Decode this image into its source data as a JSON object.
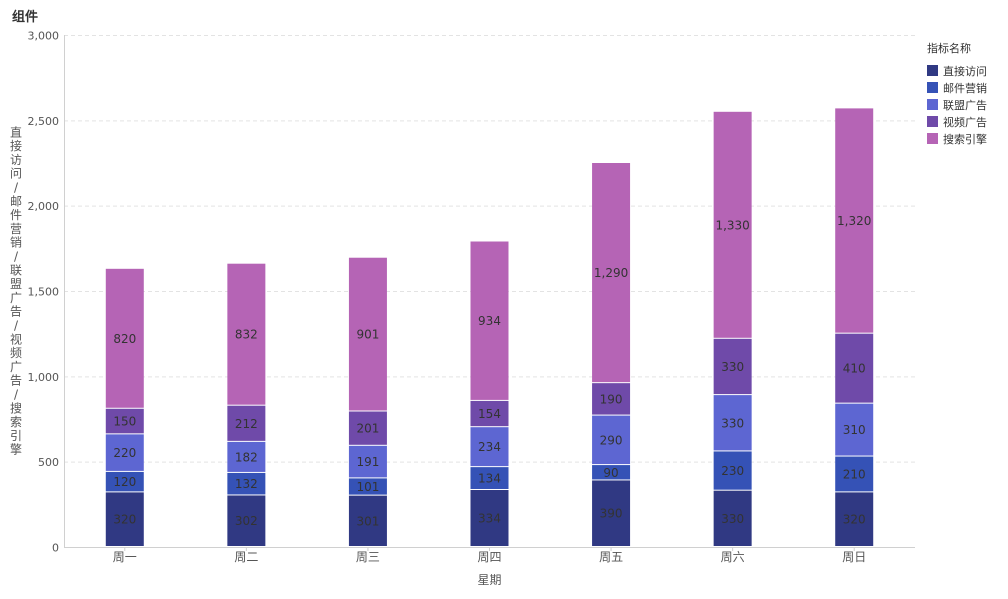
{
  "page": {
    "title": "组件"
  },
  "legend": {
    "title": "指标名称"
  },
  "colors": [
    "#303983",
    "#3552b6",
    "#5d66d2",
    "#6f4aa9",
    "#b564b5"
  ],
  "chart_data": {
    "type": "bar",
    "stacked": true,
    "xlabel": "星期",
    "ylabel": "直接访问/邮件营销/联盟广告/视频广告/搜索引擎",
    "ylim": [
      0,
      3000
    ],
    "yticks": [
      0,
      500,
      1000,
      1500,
      2000,
      2500,
      3000
    ],
    "ytick_labels": [
      "0",
      "500",
      "1,000",
      "1,500",
      "2,000",
      "2,500",
      "3,000"
    ],
    "grid": true,
    "legend_position": "top-right",
    "categories": [
      "周一",
      "周二",
      "周三",
      "周四",
      "周五",
      "周六",
      "周日"
    ],
    "series": [
      {
        "name": "直接访问",
        "values": [
          320,
          302,
          301,
          334,
          390,
          330,
          320
        ],
        "labels": [
          "320",
          "302",
          "301",
          "334",
          "390",
          "330",
          "320"
        ]
      },
      {
        "name": "邮件营销",
        "values": [
          120,
          132,
          101,
          134,
          90,
          230,
          210
        ],
        "labels": [
          "120",
          "132",
          "101",
          "134",
          "90",
          "230",
          "210"
        ]
      },
      {
        "name": "联盟广告",
        "values": [
          220,
          182,
          191,
          234,
          290,
          330,
          310
        ],
        "labels": [
          "220",
          "182",
          "191",
          "234",
          "290",
          "330",
          "310"
        ]
      },
      {
        "name": "视频广告",
        "values": [
          150,
          212,
          201,
          154,
          190,
          330,
          410
        ],
        "labels": [
          "150",
          "212",
          "201",
          "154",
          "190",
          "330",
          "410"
        ]
      },
      {
        "name": "搜索引擎",
        "values": [
          820,
          832,
          901,
          934,
          1290,
          1330,
          1320
        ],
        "labels": [
          "820",
          "832",
          "901",
          "934",
          "1,290",
          "1,330",
          "1,320"
        ]
      }
    ]
  }
}
